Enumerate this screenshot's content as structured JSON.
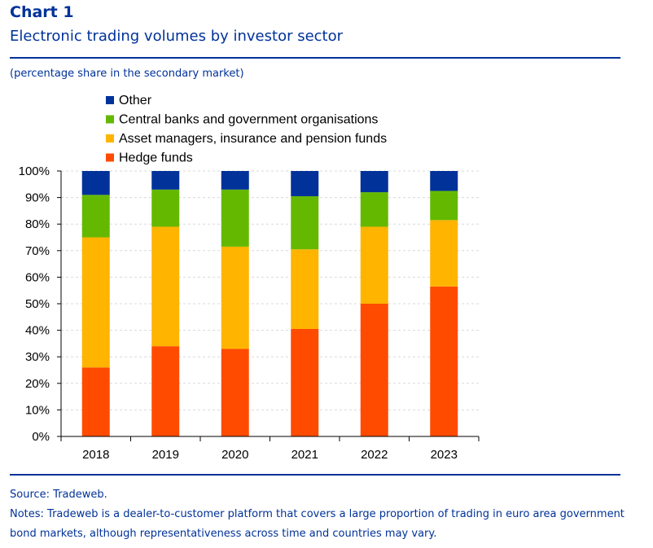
{
  "header": {
    "label": "Chart 1",
    "title": "Electronic trading volumes by investor sector",
    "subtitle": "(percentage share in the secondary market)"
  },
  "footer": {
    "source": "Source: Tradeweb.",
    "notes": "Notes: Tradeweb is a dealer-to-customer platform that covers a large proportion of trading in euro area government bond markets, although representativeness across time and countries may vary."
  },
  "colors": {
    "brand": "#003299",
    "hedge": "#ff4b00",
    "asset": "#ffb400",
    "central": "#65b800",
    "other": "#003299",
    "grid": "#d9d9d9"
  },
  "chart_data": {
    "type": "bar",
    "stacked": true,
    "title": "Electronic trading volumes by investor sector",
    "ylabel": "percentage share in the secondary market",
    "ylim": [
      0,
      100
    ],
    "yticks": [
      "0%",
      "10%",
      "20%",
      "30%",
      "40%",
      "50%",
      "60%",
      "70%",
      "80%",
      "90%",
      "100%"
    ],
    "categories": [
      "2018",
      "2019",
      "2020",
      "2021",
      "2022",
      "2023"
    ],
    "series": [
      {
        "name": "Hedge funds",
        "color_key": "hedge",
        "values": [
          26,
          34,
          33,
          40.5,
          50,
          56.5
        ]
      },
      {
        "name": "Asset managers, insurance and pension funds",
        "color_key": "asset",
        "values": [
          49,
          45,
          38.5,
          30,
          29,
          25
        ]
      },
      {
        "name": "Central banks and government organisations",
        "color_key": "central",
        "values": [
          16,
          14,
          21.5,
          20,
          13,
          11
        ]
      },
      {
        "name": "Other",
        "color_key": "other",
        "values": [
          9,
          7,
          7,
          9.5,
          8,
          7.5
        ]
      }
    ],
    "legend_order": [
      "Other",
      "Central banks and government organisations",
      "Asset managers, insurance and pension funds",
      "Hedge funds"
    ],
    "legend_position": "top-left"
  }
}
